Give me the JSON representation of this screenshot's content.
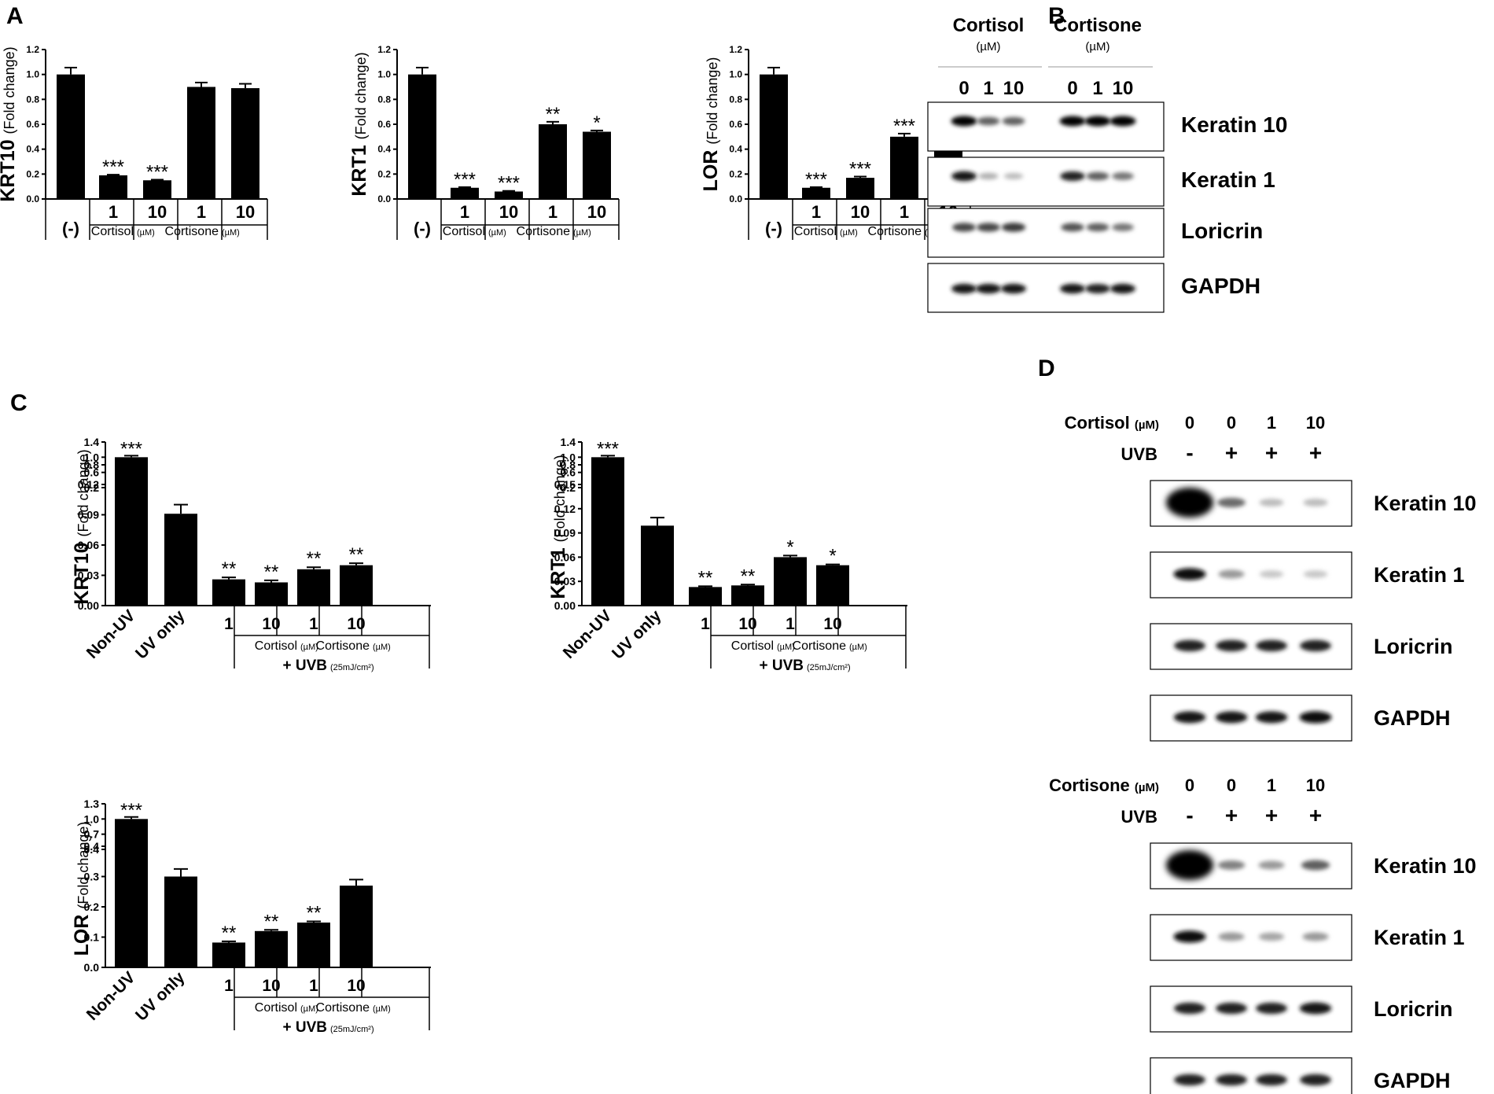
{
  "panels": {
    "A": "A",
    "B": "B",
    "C": "C",
    "D": "D"
  },
  "chart_data": [
    {
      "panel": "A",
      "type": "bar",
      "ylabel_main": "KRT10",
      "ylabel_unit": "(Fold change)",
      "categories": [
        "(-)",
        "1",
        "10",
        "1",
        "10"
      ],
      "values": [
        1.0,
        0.19,
        0.15,
        0.9,
        0.89
      ],
      "errors": [
        0.055,
        0.005,
        0.005,
        0.035,
        0.035
      ],
      "significance": [
        "",
        "***",
        "***",
        "",
        ""
      ],
      "yticks": [
        "0.0",
        "0.2",
        "0.4",
        "0.6",
        "0.8",
        "1.0",
        "1.2"
      ],
      "ylim": [
        0,
        1.2
      ],
      "groups": [
        {
          "label": "Cortisol",
          "unit": "(µM)"
        },
        {
          "label": "Cortisone",
          "unit": "(µM)"
        }
      ]
    },
    {
      "panel": "A",
      "type": "bar",
      "ylabel_main": "KRT1",
      "ylabel_unit": "(Fold change)",
      "categories": [
        "(-)",
        "1",
        "10",
        "1",
        "10"
      ],
      "values": [
        1.0,
        0.09,
        0.06,
        0.6,
        0.54
      ],
      "errors": [
        0.055,
        0.005,
        0.005,
        0.02,
        0.01
      ],
      "significance": [
        "",
        "***",
        "***",
        "**",
        "*"
      ],
      "yticks": [
        "0.0",
        "0.2",
        "0.4",
        "0.6",
        "0.8",
        "1.0",
        "1.2"
      ],
      "ylim": [
        0,
        1.2
      ],
      "groups": [
        {
          "label": "Cortisol",
          "unit": "(µM)"
        },
        {
          "label": "Cortisone",
          "unit": "(µM)"
        }
      ]
    },
    {
      "panel": "A",
      "type": "bar",
      "ylabel_main": "LOR",
      "ylabel_unit": "(Fold change)",
      "categories": [
        "(-)",
        "1",
        "10",
        "1",
        "10"
      ],
      "values": [
        1.0,
        0.09,
        0.17,
        0.5,
        0.6
      ],
      "errors": [
        0.055,
        0.005,
        0.01,
        0.025,
        0.025
      ],
      "significance": [
        "",
        "***",
        "***",
        "***",
        "**"
      ],
      "yticks": [
        "0.0",
        "0.2",
        "0.4",
        "0.6",
        "0.8",
        "1.0",
        "1.2"
      ],
      "ylim": [
        0,
        1.2
      ],
      "groups": [
        {
          "label": "Cortisol",
          "unit": "(µM)"
        },
        {
          "label": "Cortisone",
          "unit": "(µM)"
        }
      ]
    },
    {
      "panel": "C",
      "type": "bar",
      "ylabel_main": "KRT10",
      "ylabel_unit": "(Fold change)",
      "categories": [
        "Non-UV",
        "UV only",
        "1",
        "10",
        "1",
        "10"
      ],
      "values": [
        1.0,
        0.091,
        0.026,
        0.023,
        0.036,
        0.04
      ],
      "errors": [
        0.04,
        0.009,
        0.002,
        0.002,
        0.002,
        0.002
      ],
      "significance": [
        "***",
        "",
        "**",
        "**",
        "**",
        "**"
      ],
      "axis_break": {
        "lower": [
          0,
          0.12
        ],
        "upper": [
          0.2,
          1.4
        ]
      },
      "yticks_lower": [
        "0.00",
        "0.03",
        "0.06",
        "0.09",
        "0.12"
      ],
      "yticks_upper": [
        "0.2",
        "0.6",
        "0.8",
        "1.0",
        "1.4"
      ],
      "groups": [
        {
          "label": "Cortisol",
          "unit": "(µM)"
        },
        {
          "label": "Cortisone",
          "unit": "(µM)"
        }
      ],
      "treatment": {
        "label": "+ UVB",
        "unit": "(25mJ/cm²)"
      }
    },
    {
      "panel": "C",
      "type": "bar",
      "ylabel_main": "KRT1",
      "ylabel_unit": "(Fold change)",
      "categories": [
        "Non-UV",
        "UV only",
        "1",
        "10",
        "1",
        "10"
      ],
      "values": [
        1.0,
        0.099,
        0.023,
        0.025,
        0.06,
        0.05
      ],
      "errors": [
        0.04,
        0.01,
        0.001,
        0.001,
        0.002,
        0.001
      ],
      "significance": [
        "***",
        "",
        "**",
        "**",
        "*",
        "*"
      ],
      "axis_break": {
        "lower": [
          0,
          0.15
        ],
        "upper": [
          0.2,
          1.4
        ]
      },
      "yticks_lower": [
        "0.00",
        "0.03",
        "0.06",
        "0.09",
        "0.12",
        "0.15"
      ],
      "yticks_upper": [
        "0.2",
        "0.6",
        "0.8",
        "1.0",
        "1.4"
      ],
      "groups": [
        {
          "label": "Cortisol",
          "unit": "(µM)"
        },
        {
          "label": "Cortisone",
          "unit": "(µM)"
        }
      ],
      "treatment": {
        "label": "+ UVB",
        "unit": "(25mJ/cm²)"
      }
    },
    {
      "panel": "C",
      "type": "bar",
      "ylabel_main": "LOR",
      "ylabel_unit": "(Fold change)",
      "categories": [
        "Non-UV",
        "UV only",
        "1",
        "10",
        "1",
        "10"
      ],
      "values": [
        1.0,
        0.3,
        0.082,
        0.12,
        0.148,
        0.27
      ],
      "errors": [
        0.04,
        0.025,
        0.004,
        0.004,
        0.004,
        0.02
      ],
      "significance": [
        "***",
        "",
        "**",
        "**",
        "**",
        ""
      ],
      "axis_break": {
        "lower": [
          0,
          0.4
        ],
        "upper": [
          0.4,
          1.3
        ]
      },
      "yticks_lower": [
        "0.0",
        "0.1",
        "0.2",
        "0.3",
        "0.4"
      ],
      "yticks_upper": [
        "0.4",
        "0.7",
        "1.0",
        "1.3"
      ],
      "groups": [
        {
          "label": "Cortisol",
          "unit": "(µM)"
        },
        {
          "label": "Cortisone",
          "unit": "(µM)"
        }
      ],
      "treatment": {
        "label": "+ UVB",
        "unit": "(25mJ/cm²)"
      }
    }
  ],
  "blot_B": {
    "groups": [
      {
        "label": "Cortisol",
        "unit": "(µM)"
      },
      {
        "label": "Cortisone",
        "unit": "(µM)"
      }
    ],
    "doses": [
      "0",
      "1",
      "10",
      "0",
      "1",
      "10"
    ],
    "rows": [
      {
        "label": "Keratin 10",
        "intensity": [
          1.0,
          0.6,
          0.6,
          1.0,
          1.0,
          1.0
        ]
      },
      {
        "label": "Keratin 1",
        "intensity": [
          0.9,
          0.25,
          0.2,
          0.85,
          0.6,
          0.5
        ]
      },
      {
        "label": "Loricrin",
        "intensity": [
          0.7,
          0.7,
          0.75,
          0.65,
          0.6,
          0.5
        ]
      },
      {
        "label": "GAPDH",
        "intensity": [
          0.9,
          0.9,
          0.9,
          0.9,
          0.85,
          0.9
        ]
      }
    ]
  },
  "blot_D": [
    {
      "drug": "Cortisol",
      "unit": "(µM)",
      "uvb_label": "UVB",
      "doses": [
        "0",
        "0",
        "1",
        "10"
      ],
      "uvb": [
        "-",
        "+",
        "+",
        "+"
      ],
      "rows": [
        {
          "label": "Keratin 10",
          "intensity": [
            1.0,
            0.55,
            0.2,
            0.2
          ]
        },
        {
          "label": "Keratin 1",
          "intensity": [
            0.95,
            0.35,
            0.15,
            0.15
          ]
        },
        {
          "label": "Loricrin",
          "intensity": [
            0.85,
            0.85,
            0.85,
            0.85
          ]
        },
        {
          "label": "GAPDH",
          "intensity": [
            0.9,
            0.9,
            0.9,
            0.95
          ]
        }
      ]
    },
    {
      "drug": "Cortisone",
      "unit": "(µM)",
      "uvb_label": "UVB",
      "doses": [
        "0",
        "0",
        "1",
        "10"
      ],
      "uvb": [
        "-",
        "+",
        "+",
        "+"
      ],
      "rows": [
        {
          "label": "Keratin 10",
          "intensity": [
            1.0,
            0.45,
            0.35,
            0.6
          ]
        },
        {
          "label": "Keratin 1",
          "intensity": [
            0.95,
            0.35,
            0.3,
            0.35
          ]
        },
        {
          "label": "Loricrin",
          "intensity": [
            0.85,
            0.85,
            0.85,
            0.9
          ]
        },
        {
          "label": "GAPDH",
          "intensity": [
            0.85,
            0.85,
            0.85,
            0.85
          ]
        }
      ]
    }
  ]
}
